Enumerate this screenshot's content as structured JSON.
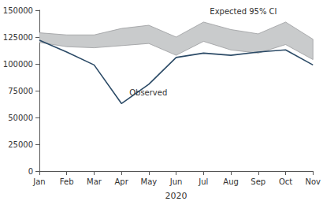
{
  "chart_data": {
    "type": "line",
    "x_label": "2020",
    "categories": [
      "Jan",
      "Feb",
      "Mar",
      "Apr",
      "May",
      "Jun",
      "Jul",
      "Aug",
      "Sep",
      "Oct",
      "Nov"
    ],
    "series": [
      {
        "name": "Expected 95% CI",
        "type": "band",
        "color": "#c9cbcc",
        "lower": [
          120000,
          116000,
          115000,
          117000,
          119000,
          108000,
          121000,
          113000,
          110000,
          118000,
          104000
        ],
        "upper": [
          129000,
          127000,
          127000,
          133000,
          136000,
          125000,
          139000,
          132000,
          128000,
          139000,
          123000
        ]
      },
      {
        "name": "Observed",
        "type": "line",
        "color": "#2b4a66",
        "values": [
          122000,
          111000,
          99000,
          63000,
          81000,
          106000,
          110000,
          108000,
          111000,
          113000,
          99000
        ]
      }
    ],
    "ylim": [
      0,
      150000
    ],
    "yticks": [
      0,
      25000,
      50000,
      75000,
      100000,
      125000,
      150000
    ],
    "grid": false
  }
}
